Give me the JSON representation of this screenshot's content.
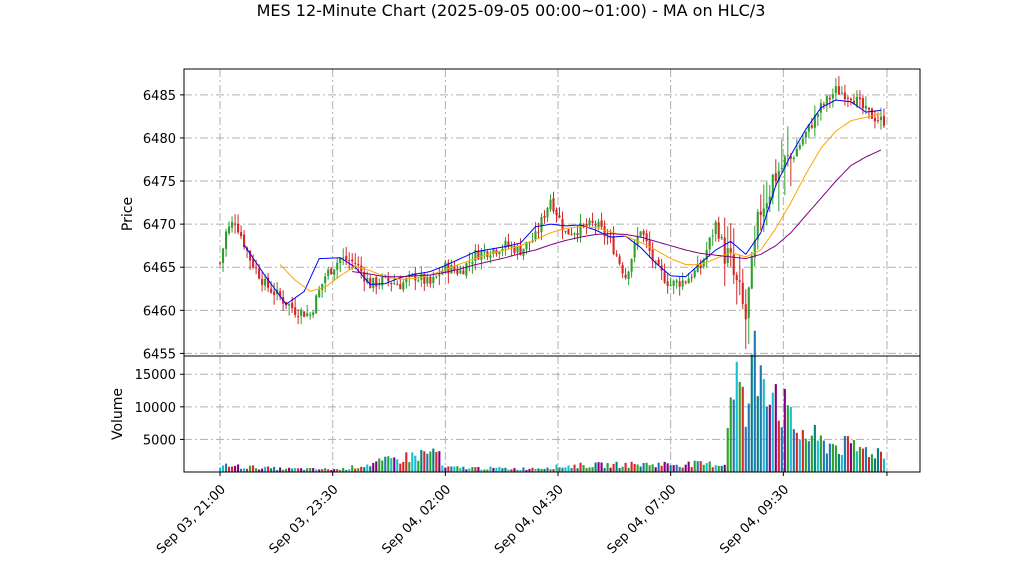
{
  "chart_data": {
    "type": "candlestick",
    "title": "MES 12-Minute Chart (2025-09-05 00:00~01:00) - MA on HLC/3",
    "price_panel": {
      "ylabel": "Price",
      "yticks": [
        6455,
        6460,
        6465,
        6470,
        6475,
        6480,
        6485
      ],
      "ylim": [
        6454.7,
        6488.0
      ],
      "grid": true,
      "grid_style": "dash-dot",
      "up_color": "#2ca02c",
      "down_color": "#d62728",
      "ma_colors": [
        "#0000ff",
        "#ffa500",
        "#800080"
      ],
      "candles_anchor": [
        {
          "t": 0,
          "close": 6465.5
        },
        {
          "t": 2,
          "close": 6469.0
        },
        {
          "t": 5,
          "close": 6470.5
        },
        {
          "t": 10,
          "close": 6466.0
        },
        {
          "t": 15,
          "close": 6463.0
        },
        {
          "t": 20,
          "close": 6461.5
        },
        {
          "t": 25,
          "close": 6460.0
        },
        {
          "t": 30,
          "close": 6459.5
        },
        {
          "t": 35,
          "close": 6464.0
        },
        {
          "t": 40,
          "close": 6466.0
        },
        {
          "t": 45,
          "close": 6465.5
        },
        {
          "t": 50,
          "close": 6463.0
        },
        {
          "t": 55,
          "close": 6463.5
        },
        {
          "t": 60,
          "close": 6463.0
        },
        {
          "t": 65,
          "close": 6464.0
        },
        {
          "t": 70,
          "close": 6463.0
        },
        {
          "t": 75,
          "close": 6465.0
        },
        {
          "t": 80,
          "close": 6464.5
        },
        {
          "t": 85,
          "close": 6466.5
        },
        {
          "t": 90,
          "close": 6467.0
        },
        {
          "t": 95,
          "close": 6467.5
        },
        {
          "t": 100,
          "close": 6467.0
        },
        {
          "t": 105,
          "close": 6468.5
        },
        {
          "t": 110,
          "close": 6473.0
        },
        {
          "t": 115,
          "close": 6469.0
        },
        {
          "t": 120,
          "close": 6469.5
        },
        {
          "t": 125,
          "close": 6470.0
        },
        {
          "t": 130,
          "close": 6468.0
        },
        {
          "t": 135,
          "close": 6464.0
        },
        {
          "t": 140,
          "close": 6469.5
        },
        {
          "t": 145,
          "close": 6465.0
        },
        {
          "t": 150,
          "close": 6463.0
        },
        {
          "t": 155,
          "close": 6463.5
        },
        {
          "t": 160,
          "close": 6465.0
        },
        {
          "t": 165,
          "close": 6470.0
        },
        {
          "t": 170,
          "close": 6465.0
        },
        {
          "t": 175,
          "close": 6459.0
        },
        {
          "t": 180,
          "close": 6472.0
        },
        {
          "t": 185,
          "close": 6476.0
        },
        {
          "t": 190,
          "close": 6477.5
        },
        {
          "t": 195,
          "close": 6480.5
        },
        {
          "t": 200,
          "close": 6483.5
        },
        {
          "t": 205,
          "close": 6485.5
        },
        {
          "t": 210,
          "close": 6485.0
        },
        {
          "t": 215,
          "close": 6483.0
        },
        {
          "t": 220,
          "close": 6482.0
        }
      ],
      "ma_fast_anchor": [
        {
          "t": 8,
          "v": 6467.6
        },
        {
          "t": 15,
          "v": 6464.0
        },
        {
          "t": 22,
          "v": 6460.7
        },
        {
          "t": 28,
          "v": 6462.2
        },
        {
          "t": 33,
          "v": 6466.0
        },
        {
          "t": 40,
          "v": 6466.1
        },
        {
          "t": 45,
          "v": 6465.0
        },
        {
          "t": 50,
          "v": 6463.0
        },
        {
          "t": 55,
          "v": 6463.1
        },
        {
          "t": 60,
          "v": 6463.8
        },
        {
          "t": 65,
          "v": 6464.2
        },
        {
          "t": 70,
          "v": 6464.5
        },
        {
          "t": 75,
          "v": 6465.2
        },
        {
          "t": 80,
          "v": 6466.0
        },
        {
          "t": 85,
          "v": 6466.8
        },
        {
          "t": 90,
          "v": 6467.1
        },
        {
          "t": 95,
          "v": 6467.4
        },
        {
          "t": 100,
          "v": 6467.8
        },
        {
          "t": 105,
          "v": 6469.7
        },
        {
          "t": 110,
          "v": 6470.0
        },
        {
          "t": 115,
          "v": 6469.8
        },
        {
          "t": 120,
          "v": 6469.9
        },
        {
          "t": 125,
          "v": 6469.3
        },
        {
          "t": 130,
          "v": 6468.5
        },
        {
          "t": 135,
          "v": 6468.6
        },
        {
          "t": 140,
          "v": 6467.3
        },
        {
          "t": 145,
          "v": 6465.5
        },
        {
          "t": 150,
          "v": 6464.0
        },
        {
          "t": 155,
          "v": 6463.9
        },
        {
          "t": 160,
          "v": 6465.5
        },
        {
          "t": 165,
          "v": 6467.0
        },
        {
          "t": 170,
          "v": 6468.0
        },
        {
          "t": 175,
          "v": 6466.5
        },
        {
          "t": 180,
          "v": 6469.0
        },
        {
          "t": 185,
          "v": 6474.5
        },
        {
          "t": 190,
          "v": 6478.0
        },
        {
          "t": 195,
          "v": 6481.0
        },
        {
          "t": 200,
          "v": 6483.5
        },
        {
          "t": 205,
          "v": 6484.4
        },
        {
          "t": 210,
          "v": 6484.2
        },
        {
          "t": 215,
          "v": 6483.0
        },
        {
          "t": 220,
          "v": 6483.2
        }
      ],
      "ma_mid_anchor": [
        {
          "t": 20,
          "v": 6465.3
        },
        {
          "t": 25,
          "v": 6463.5
        },
        {
          "t": 30,
          "v": 6462.2
        },
        {
          "t": 35,
          "v": 6462.7
        },
        {
          "t": 40,
          "v": 6464.0
        },
        {
          "t": 45,
          "v": 6465.1
        },
        {
          "t": 50,
          "v": 6464.6
        },
        {
          "t": 55,
          "v": 6463.9
        },
        {
          "t": 60,
          "v": 6463.6
        },
        {
          "t": 65,
          "v": 6463.7
        },
        {
          "t": 70,
          "v": 6464.1
        },
        {
          "t": 75,
          "v": 6464.7
        },
        {
          "t": 80,
          "v": 6465.4
        },
        {
          "t": 85,
          "v": 6466.0
        },
        {
          "t": 90,
          "v": 6466.6
        },
        {
          "t": 95,
          "v": 6467.0
        },
        {
          "t": 100,
          "v": 6467.5
        },
        {
          "t": 105,
          "v": 6468.2
        },
        {
          "t": 110,
          "v": 6469.0
        },
        {
          "t": 115,
          "v": 6469.5
        },
        {
          "t": 120,
          "v": 6469.7
        },
        {
          "t": 125,
          "v": 6469.6
        },
        {
          "t": 130,
          "v": 6469.1
        },
        {
          "t": 135,
          "v": 6468.6
        },
        {
          "t": 140,
          "v": 6467.9
        },
        {
          "t": 145,
          "v": 6467.0
        },
        {
          "t": 150,
          "v": 6466.0
        },
        {
          "t": 155,
          "v": 6465.3
        },
        {
          "t": 160,
          "v": 6465.3
        },
        {
          "t": 165,
          "v": 6466.0
        },
        {
          "t": 170,
          "v": 6466.7
        },
        {
          "t": 175,
          "v": 6466.2
        },
        {
          "t": 180,
          "v": 6467.0
        },
        {
          "t": 185,
          "v": 6469.5
        },
        {
          "t": 190,
          "v": 6472.5
        },
        {
          "t": 195,
          "v": 6475.8
        },
        {
          "t": 200,
          "v": 6478.8
        },
        {
          "t": 205,
          "v": 6480.8
        },
        {
          "t": 210,
          "v": 6482.0
        },
        {
          "t": 215,
          "v": 6482.4
        },
        {
          "t": 220,
          "v": 6482.8
        }
      ],
      "ma_slow_anchor": [
        {
          "t": 44,
          "v": 6464.5
        },
        {
          "t": 50,
          "v": 6464.2
        },
        {
          "t": 55,
          "v": 6463.9
        },
        {
          "t": 60,
          "v": 6463.9
        },
        {
          "t": 65,
          "v": 6464.0
        },
        {
          "t": 70,
          "v": 6464.1
        },
        {
          "t": 75,
          "v": 6464.4
        },
        {
          "t": 80,
          "v": 6464.8
        },
        {
          "t": 85,
          "v": 6465.3
        },
        {
          "t": 90,
          "v": 6465.7
        },
        {
          "t": 95,
          "v": 6466.1
        },
        {
          "t": 100,
          "v": 6466.6
        },
        {
          "t": 105,
          "v": 6467.0
        },
        {
          "t": 110,
          "v": 6467.6
        },
        {
          "t": 115,
          "v": 6468.1
        },
        {
          "t": 120,
          "v": 6468.5
        },
        {
          "t": 125,
          "v": 6468.8
        },
        {
          "t": 130,
          "v": 6468.9
        },
        {
          "t": 135,
          "v": 6468.8
        },
        {
          "t": 140,
          "v": 6468.5
        },
        {
          "t": 145,
          "v": 6468.0
        },
        {
          "t": 150,
          "v": 6467.5
        },
        {
          "t": 155,
          "v": 6467.0
        },
        {
          "t": 160,
          "v": 6466.6
        },
        {
          "t": 165,
          "v": 6466.4
        },
        {
          "t": 170,
          "v": 6466.2
        },
        {
          "t": 175,
          "v": 6466.0
        },
        {
          "t": 180,
          "v": 6466.5
        },
        {
          "t": 185,
          "v": 6467.5
        },
        {
          "t": 190,
          "v": 6469.0
        },
        {
          "t": 195,
          "v": 6471.0
        },
        {
          "t": 200,
          "v": 6473.0
        },
        {
          "t": 205,
          "v": 6475.0
        },
        {
          "t": 210,
          "v": 6476.8
        },
        {
          "t": 215,
          "v": 6477.8
        },
        {
          "t": 220,
          "v": 6478.6
        }
      ]
    },
    "volume_panel": {
      "ylabel": "Volume",
      "yticks": [
        5000,
        10000,
        15000
      ],
      "yticklabels": [
        "5000",
        "10000",
        "15000"
      ],
      "ylim": [
        0,
        17800
      ],
      "grid": true,
      "anchor": [
        {
          "t": 0,
          "v": 1000
        },
        {
          "t": 20,
          "v": 500
        },
        {
          "t": 40,
          "v": 400
        },
        {
          "t": 50,
          "v": 1200
        },
        {
          "t": 73,
          "v": 3200
        },
        {
          "t": 74,
          "v": 700
        },
        {
          "t": 100,
          "v": 500
        },
        {
          "t": 120,
          "v": 1000
        },
        {
          "t": 145,
          "v": 1200
        },
        {
          "t": 168,
          "v": 1200
        },
        {
          "t": 170,
          "v": 13500
        },
        {
          "t": 171,
          "v": 17000
        },
        {
          "t": 175,
          "v": 8000
        },
        {
          "t": 178,
          "v": 17000
        },
        {
          "t": 182,
          "v": 16000
        },
        {
          "t": 184,
          "v": 14000
        },
        {
          "t": 190,
          "v": 7000
        },
        {
          "t": 200,
          "v": 4500
        },
        {
          "t": 220,
          "v": 3000
        }
      ],
      "bar_colors": [
        "#d62728",
        "#2ca02c",
        "#1f77b4",
        "#17becf",
        "#800080",
        "#008080"
      ]
    },
    "x_axis": {
      "bars": 222,
      "tick_positions": [
        0,
        37.5,
        75,
        112.5,
        150,
        187.5,
        222
      ],
      "tick_labels": [
        "Sep 03, 21:00",
        "Sep 03, 23:30",
        "Sep 04, 02:00",
        "Sep 04, 04:30",
        "Sep 04, 07:00",
        "Sep 04, 09:30",
        ""
      ],
      "xlim": [
        -12,
        233
      ]
    }
  }
}
